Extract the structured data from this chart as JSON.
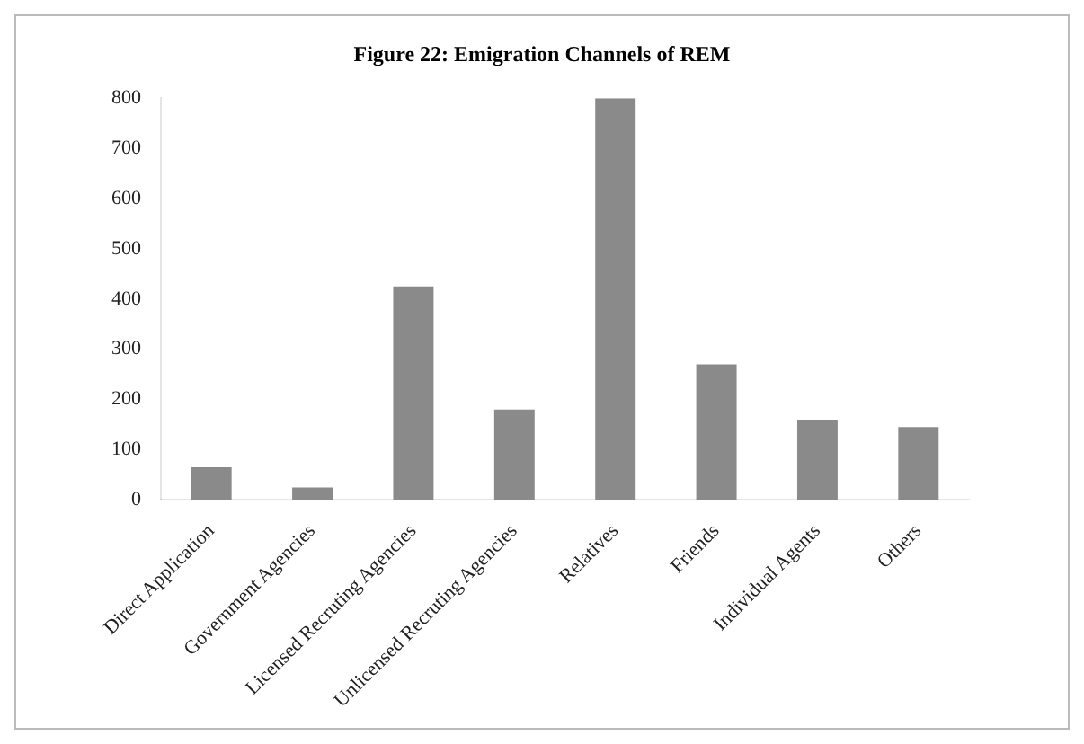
{
  "chart_data": {
    "type": "bar",
    "title": "Figure 22: Emigration Channels of REM",
    "categories": [
      "Direct Application",
      "Government Agencies",
      "Licensed Recruting Agencies",
      "Unlicensed Recruting Agencies",
      "Relatives",
      "Friends",
      "Individual Agents",
      "Others"
    ],
    "values": [
      65,
      25,
      425,
      180,
      800,
      270,
      160,
      145
    ],
    "color": "#8a8a8a",
    "ylim": [
      0,
      800
    ],
    "yticks": [
      0,
      100,
      200,
      300,
      400,
      500,
      600,
      700,
      800
    ],
    "grid": false
  }
}
